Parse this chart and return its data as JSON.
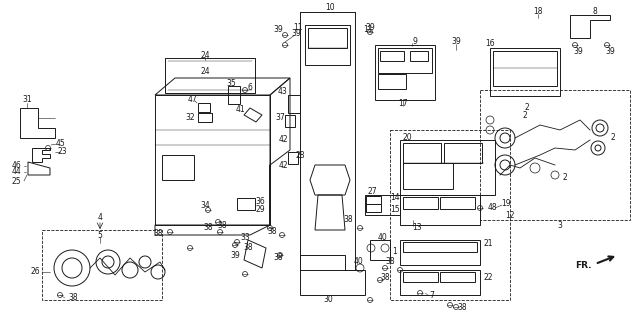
{
  "bg_color": "#ffffff",
  "line_color": "#1a1a1a",
  "fig_width": 6.4,
  "fig_height": 3.15,
  "dpi": 100
}
